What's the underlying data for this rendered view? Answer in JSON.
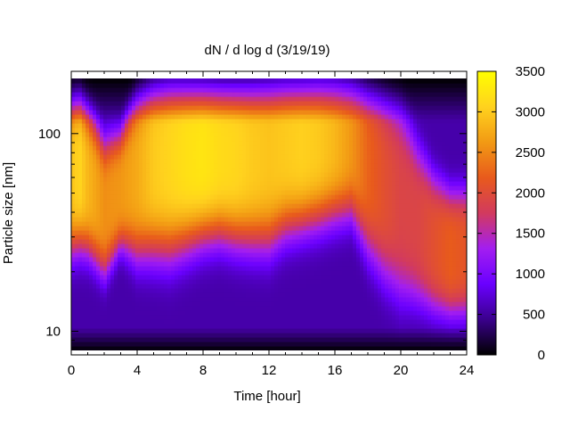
{
  "chart_data": {
    "type": "heatmap",
    "title": "dN / d log d (3/19/19)",
    "xlabel": "Time [hour]",
    "ylabel": "Particle size [nm]",
    "xlim": [
      0,
      24
    ],
    "ylim_nm": [
      8,
      190
    ],
    "y_scale": "log",
    "x_ticks": [
      "0",
      "4",
      "8",
      "12",
      "16",
      "20",
      "24"
    ],
    "y_ticks": [
      "10",
      "100"
    ],
    "colorbar_ticks": [
      "0",
      "500",
      "1000",
      "1500",
      "2000",
      "2500",
      "3000",
      "3500"
    ],
    "color_range": [
      0,
      3500
    ],
    "colormap": [
      "#000000",
      "#3a008c",
      "#6a00ff",
      "#a31ef0",
      "#d23a5e",
      "#e85a1c",
      "#f29a14",
      "#ffd21e",
      "#ffff00"
    ],
    "grid": false,
    "legend": "colorbar-right",
    "time_series": {
      "time_hours": [
        0,
        0.5,
        1,
        2,
        3,
        4,
        5,
        6,
        7,
        8,
        9,
        10,
        11,
        12,
        13,
        14,
        15,
        16,
        17,
        18,
        19,
        20,
        21,
        22,
        23,
        24
      ],
      "peak_diameter_nm": [
        62,
        65,
        58,
        42,
        52,
        62,
        72,
        76,
        78,
        80,
        80,
        78,
        78,
        80,
        88,
        90,
        95,
        98,
        95,
        70,
        55,
        45,
        35,
        28,
        25,
        25
      ],
      "peak_concentration": [
        2400,
        2550,
        2300,
        2000,
        2050,
        2200,
        2450,
        2550,
        2650,
        2700,
        2600,
        2550,
        2450,
        2400,
        2450,
        2500,
        2450,
        2300,
        2050,
        1700,
        1500,
        1350,
        1350,
        1500,
        1650,
        1550
      ],
      "distribution_width_log10": [
        0.3,
        0.3,
        0.28,
        0.26,
        0.22,
        0.32,
        0.36,
        0.38,
        0.36,
        0.34,
        0.33,
        0.34,
        0.35,
        0.36,
        0.34,
        0.33,
        0.33,
        0.32,
        0.3,
        0.34,
        0.36,
        0.36,
        0.3,
        0.26,
        0.24,
        0.24
      ]
    }
  }
}
